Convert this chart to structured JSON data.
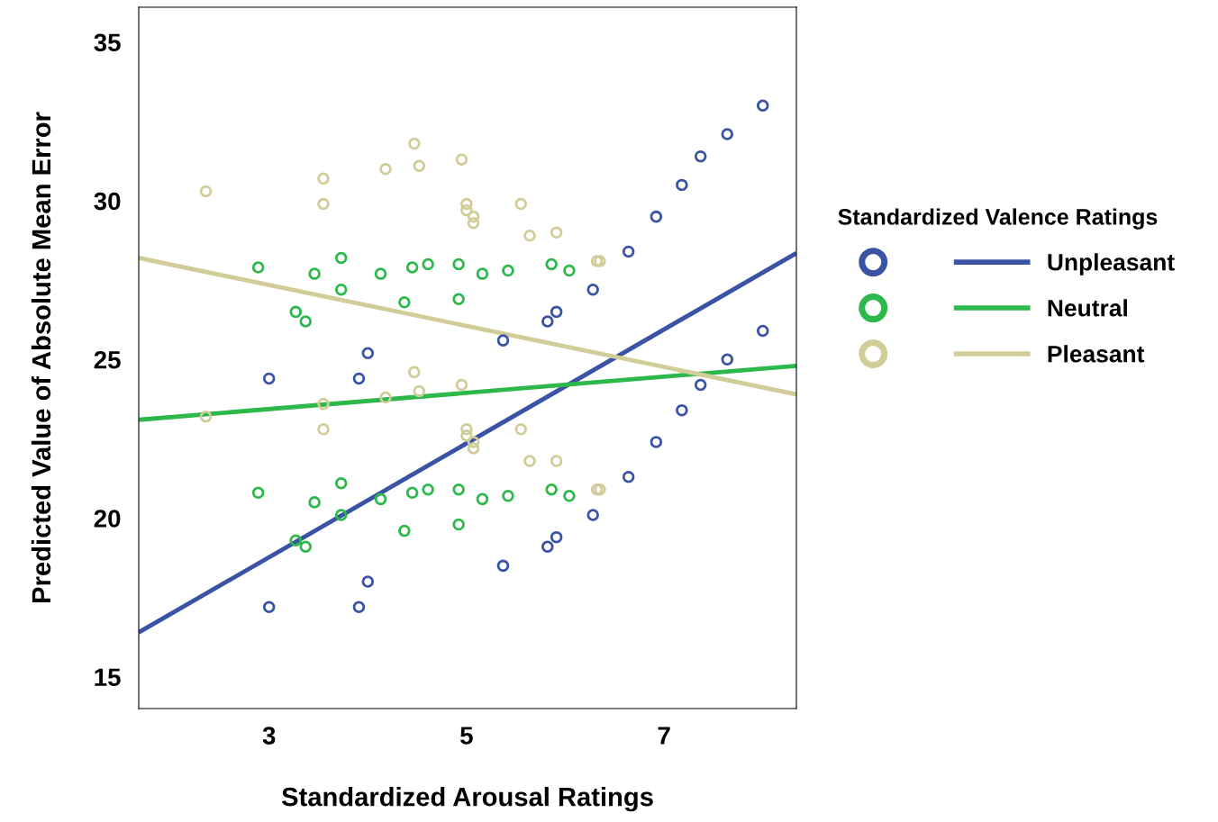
{
  "chart_data": {
    "type": "scatter",
    "xlabel": "Standardized Arousal Ratings",
    "ylabel": "Predicted Value of Absolute Mean Error",
    "legend_title": "Standardized Valence Ratings",
    "xlim": [
      1.68,
      8.34
    ],
    "ylim": [
      14,
      36.1
    ],
    "xticks": [
      3,
      5,
      7
    ],
    "yticks": [
      15,
      20,
      25,
      30,
      35
    ],
    "grid": false,
    "legend": "right",
    "series": [
      {
        "name": "Unpleasant",
        "marker": "circle",
        "color": "#3a53a4",
        "x": [
          3.0,
          3.0,
          3.91,
          3.91,
          4.0,
          4.0,
          5.37,
          5.37,
          5.82,
          5.82,
          5.91,
          5.91,
          6.28,
          6.28,
          6.64,
          6.64,
          6.92,
          6.92,
          7.18,
          7.18,
          7.37,
          7.37,
          7.64,
          7.64,
          8.0,
          8.0
        ],
        "values": [
          24.4,
          17.2,
          24.4,
          17.2,
          25.2,
          18.0,
          25.6,
          18.5,
          26.2,
          19.1,
          26.5,
          19.4,
          27.2,
          20.1,
          28.4,
          21.3,
          29.5,
          22.4,
          30.5,
          23.4,
          31.4,
          24.2,
          32.1,
          25.0,
          33.0,
          25.9
        ]
      },
      {
        "name": "Neutral",
        "marker": "circle",
        "color": "#2db84b",
        "x": [
          2.89,
          2.89,
          3.27,
          3.27,
          3.37,
          3.37,
          3.46,
          3.46,
          3.73,
          3.73,
          3.73,
          3.73,
          4.13,
          4.13,
          4.37,
          4.37,
          4.45,
          4.45,
          4.61,
          4.61,
          4.92,
          4.92,
          4.92,
          4.92,
          5.16,
          5.16,
          5.42,
          5.42,
          5.86,
          5.86,
          6.04,
          6.04
        ],
        "values": [
          27.9,
          20.8,
          26.5,
          19.3,
          26.2,
          19.1,
          27.7,
          20.5,
          28.2,
          21.1,
          27.2,
          20.1,
          27.7,
          20.6,
          26.8,
          19.6,
          27.9,
          20.8,
          28.0,
          20.9,
          28.0,
          20.9,
          26.9,
          19.8,
          27.7,
          20.6,
          27.8,
          20.7,
          28.0,
          20.9,
          27.8,
          20.7
        ]
      },
      {
        "name": "Pleasant",
        "marker": "circle",
        "color": "#d2cc98",
        "x": [
          2.36,
          2.36,
          3.55,
          3.55,
          3.55,
          3.55,
          4.18,
          4.18,
          4.47,
          4.47,
          4.52,
          4.52,
          4.95,
          4.95,
          5.0,
          5.0,
          5.0,
          5.0,
          5.07,
          5.07,
          5.07,
          5.07,
          5.55,
          5.55,
          5.64,
          5.64,
          5.91,
          5.91,
          6.32,
          6.32,
          6.35,
          6.35
        ],
        "values": [
          30.3,
          23.2,
          30.7,
          23.6,
          29.9,
          22.8,
          31.0,
          23.8,
          31.8,
          24.6,
          31.1,
          24.0,
          31.3,
          24.2,
          29.9,
          22.8,
          29.7,
          22.6,
          29.5,
          22.4,
          29.3,
          22.2,
          29.9,
          22.8,
          28.9,
          21.8,
          29.0,
          21.8,
          28.1,
          20.9,
          28.1,
          20.9
        ]
      },
      {
        "type": "line",
        "color": "#3a53a4",
        "x": [
          1.68,
          8.34
        ],
        "values": [
          16.4,
          28.35
        ]
      },
      {
        "type": "line",
        "color": "#2db84b",
        "x": [
          1.68,
          8.34
        ],
        "values": [
          23.1,
          24.8
        ]
      },
      {
        "type": "line",
        "color": "#d2cc98",
        "x": [
          1.68,
          8.34
        ],
        "values": [
          28.2,
          23.9
        ]
      }
    ]
  }
}
